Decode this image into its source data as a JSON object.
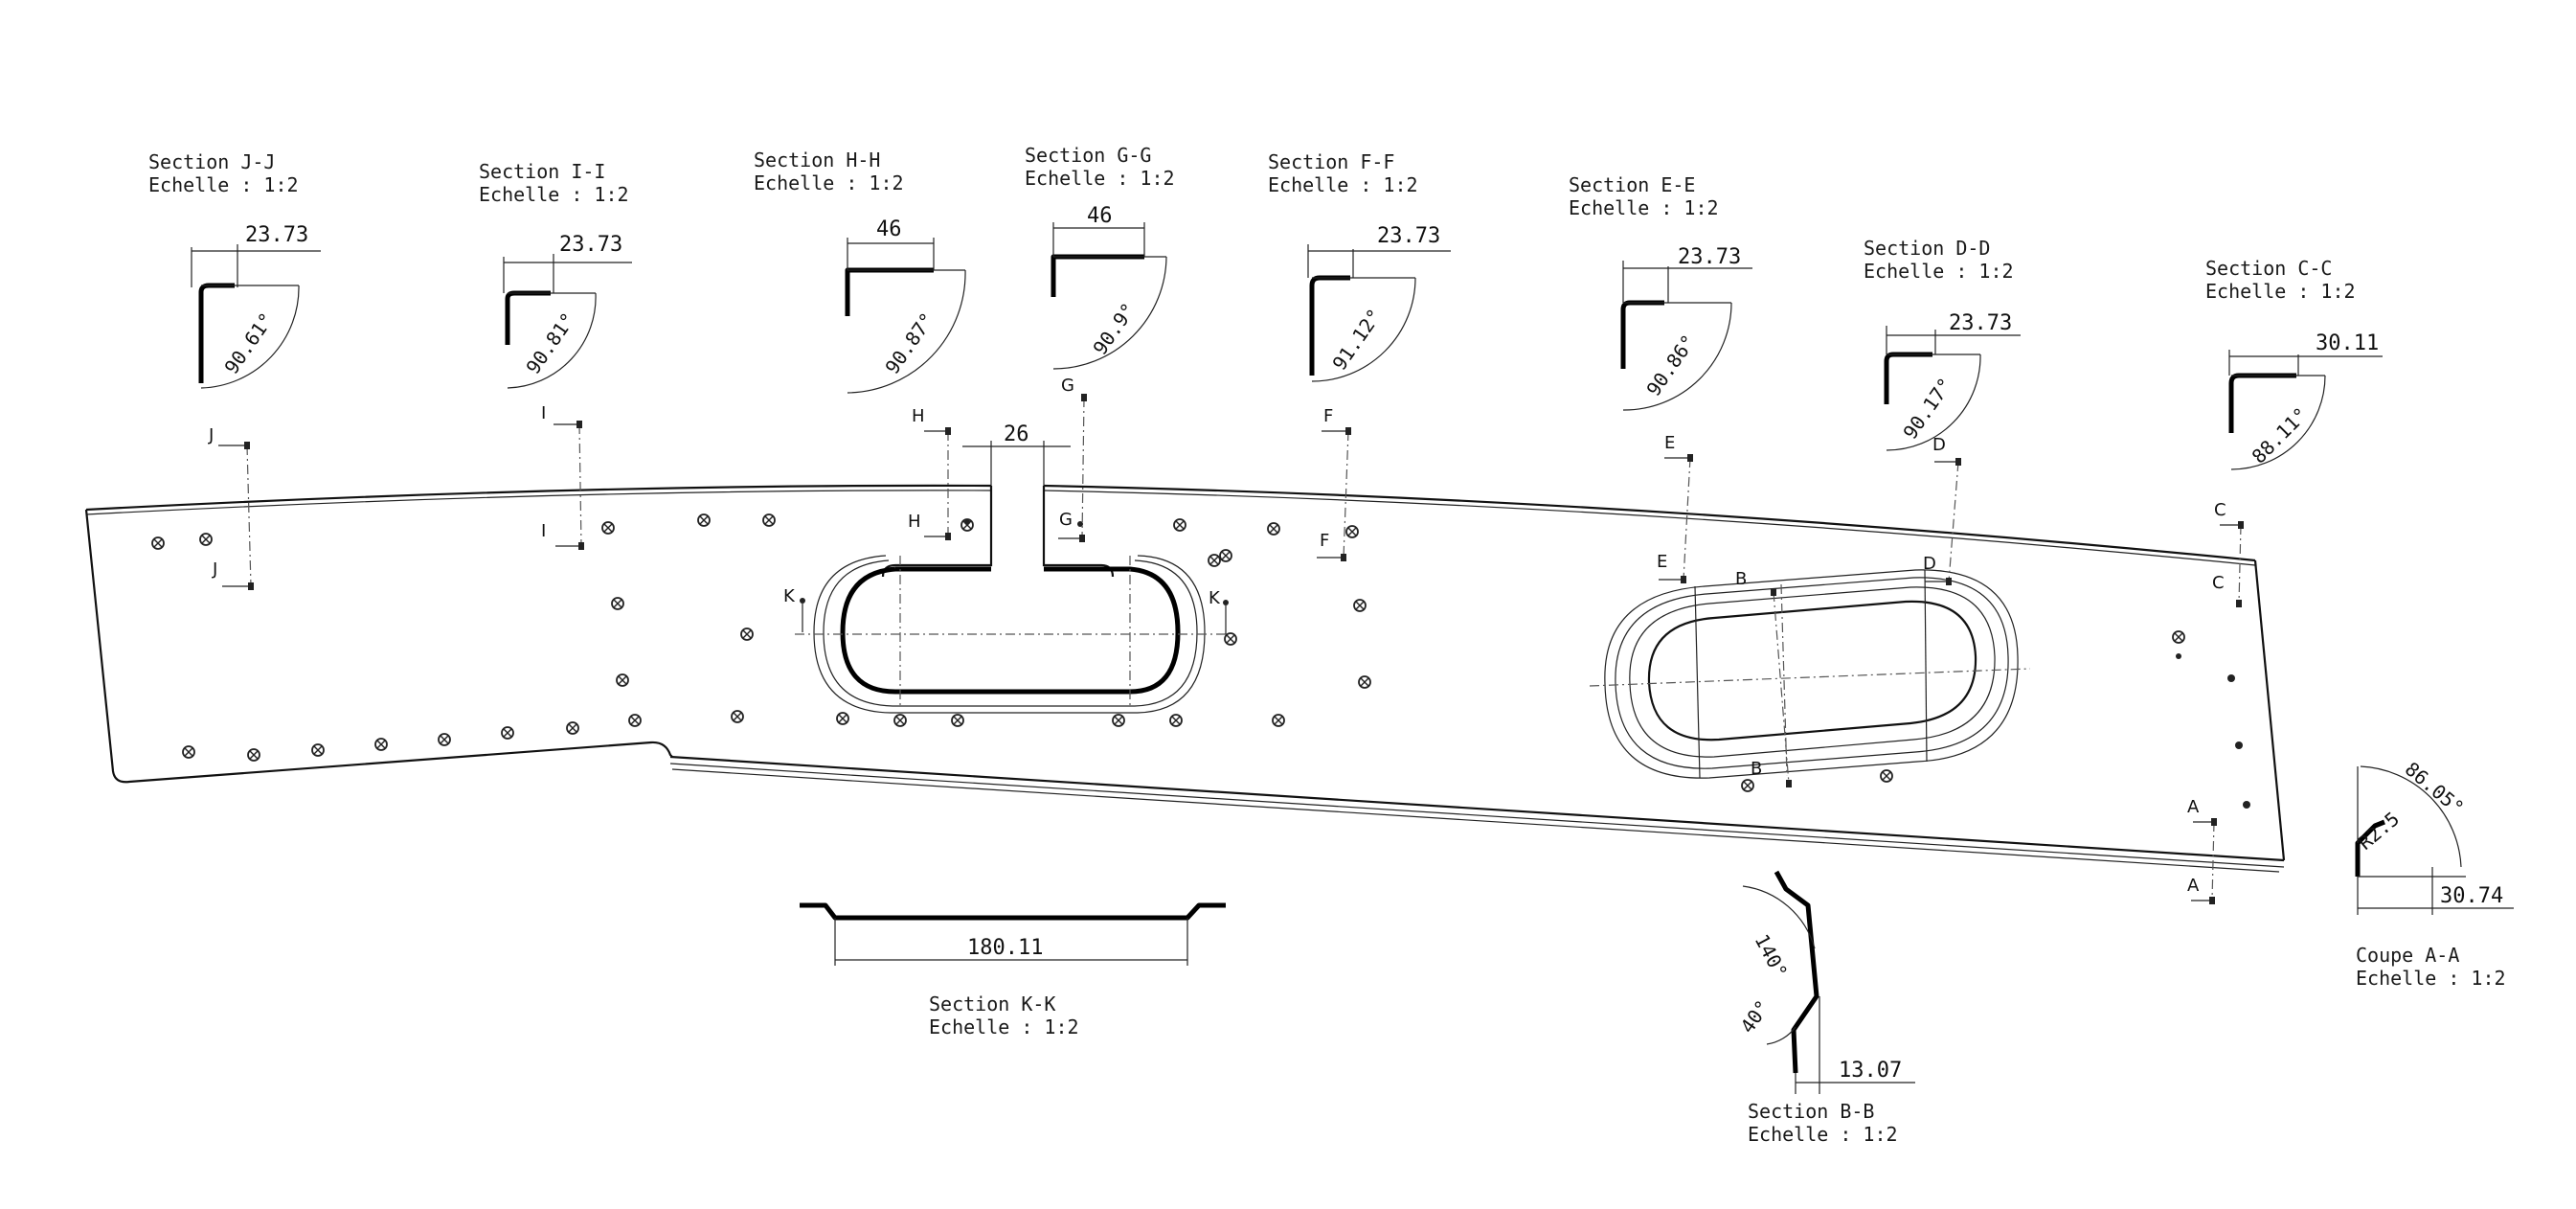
{
  "sections": {
    "jj": {
      "title": "Section J-J",
      "scale": "Echelle :  1:2",
      "dim": "23.73",
      "angle": "90.61°",
      "letter": "J"
    },
    "ii": {
      "title": "Section I-I",
      "scale": "Echelle :  1:2",
      "dim": "23.73",
      "angle": "90.81°",
      "letter": "I"
    },
    "hh": {
      "title": "Section H-H",
      "scale": "Echelle :  1:2",
      "dim": "46",
      "angle": "90.87°",
      "letter": "H"
    },
    "gg": {
      "title": "Section G-G",
      "scale": "Echelle :  1:2",
      "dim": "46",
      "angle": "90.9°",
      "letter": "G"
    },
    "ff": {
      "title": "Section F-F",
      "scale": "Echelle :  1:2",
      "dim": "23.73",
      "angle": "91.12°",
      "letter": "F"
    },
    "ee": {
      "title": "Section E-E",
      "scale": "Echelle :  1:2",
      "dim": "23.73",
      "angle": "90.86°",
      "letter": "E"
    },
    "dd": {
      "title": "Section D-D",
      "scale": "Echelle :  1:2",
      "dim": "23.73",
      "angle": "90.17°",
      "letter": "D"
    },
    "cc": {
      "title": "Section C-C",
      "scale": "Echelle :  1:2",
      "dim": "30.11",
      "angle": "88.11°",
      "letter": "C"
    },
    "kk": {
      "title": "Section K-K",
      "scale": "Echelle :  1:2",
      "dim": "180.11",
      "letter": "K"
    },
    "bb": {
      "title": "Section B-B",
      "scale": "Echelle :  1:2",
      "dim": "13.07",
      "angle1": "140°",
      "angle2": "40°",
      "letter": "B"
    },
    "aa": {
      "title": "Coupe A-A",
      "scale": "Echelle :  1:2",
      "dim": "30.74",
      "angle": "86.05°",
      "radius": "R2.5",
      "letter": "A"
    }
  },
  "main": {
    "notch_dim": "26"
  }
}
